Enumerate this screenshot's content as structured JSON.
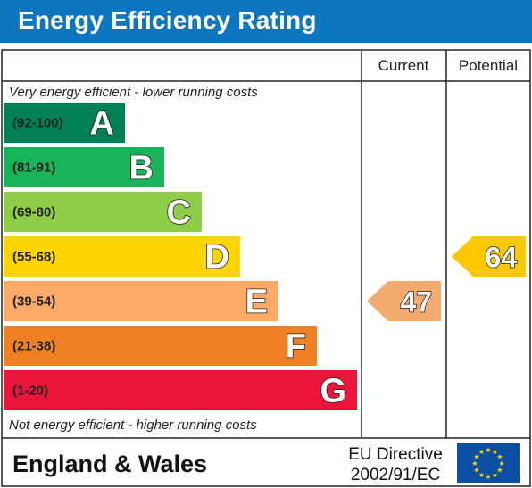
{
  "header": {
    "title": "Energy Efficiency Rating"
  },
  "colors": {
    "header_blue": "#0c76c1",
    "arrow_current": "#f4ab6e",
    "arrow_potential": "#fcc800",
    "eu_flag_blue": "#0b4ea2",
    "eu_star_yellow": "#ffd800"
  },
  "chart_data": {
    "type": "bar",
    "title": "Energy Efficiency Rating",
    "columns": [
      "Current",
      "Potential"
    ],
    "top_caption": "Very energy efficient - lower running costs",
    "bottom_caption": "Not energy efficient - higher running costs",
    "bands": [
      {
        "range": "(92-100)",
        "letter": "A",
        "color": "#008054",
        "min": 92,
        "max": 100
      },
      {
        "range": "(81-91)",
        "letter": "B",
        "color": "#19b459",
        "min": 81,
        "max": 91
      },
      {
        "range": "(69-80)",
        "letter": "C",
        "color": "#8dce46",
        "min": 69,
        "max": 80
      },
      {
        "range": "(55-68)",
        "letter": "D",
        "color": "#ffd500",
        "min": 55,
        "max": 68
      },
      {
        "range": "(39-54)",
        "letter": "E",
        "color": "#fcaa65",
        "min": 39,
        "max": 54
      },
      {
        "range": "(21-38)",
        "letter": "F",
        "color": "#ef8023",
        "min": 21,
        "max": 38
      },
      {
        "range": "(1-20)",
        "letter": "G",
        "color": "#e9153b",
        "min": 1,
        "max": 20
      }
    ],
    "current": {
      "value": 47,
      "label": "47",
      "band": "E"
    },
    "potential": {
      "value": 64,
      "label": "64",
      "band": "D"
    }
  },
  "footer": {
    "region": "England & Wales",
    "directive_line1": "EU Directive",
    "directive_line2": "2002/91/EC"
  }
}
